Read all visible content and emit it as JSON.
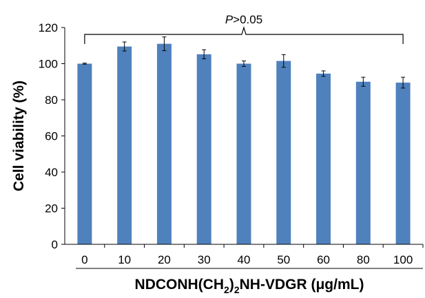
{
  "chart_data": {
    "type": "bar",
    "categories": [
      "0",
      "10",
      "20",
      "30",
      "40",
      "50",
      "60",
      "80",
      "100"
    ],
    "values": [
      100,
      109.5,
      111,
      105.2,
      100,
      101.5,
      94.5,
      90,
      89.5
    ],
    "errors": [
      0.3,
      2.5,
      3.8,
      2.5,
      1.5,
      3.5,
      1.5,
      2.5,
      3
    ],
    "ylim": [
      0,
      120
    ],
    "yticks": [
      0,
      20,
      40,
      60,
      80,
      100,
      120
    ],
    "ylabel": "Cell viability (%)",
    "xlabel": {
      "prefix": "NDCONH(CH",
      "subscript": "2",
      "suffix": ")",
      "subscript2": "2",
      "rest": "NH-VDGR (μg/mL)"
    },
    "annotation": {
      "italic": "P",
      "text": ">0.05"
    },
    "bar_color": "#4f81bd",
    "grid": false,
    "legend": "none"
  }
}
